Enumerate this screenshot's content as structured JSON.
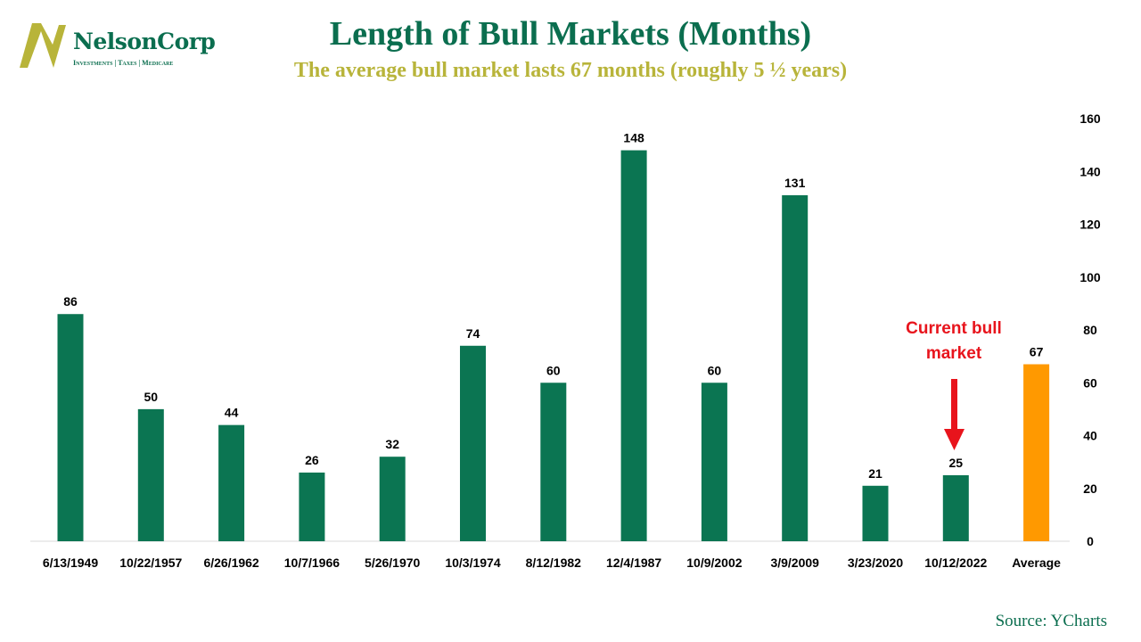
{
  "logo": {
    "name": "NelsonCorp",
    "tagline": "Investments | Taxes | Medicare"
  },
  "title": "Length of Bull Markets (Months)",
  "subtitle": "The average bull market lasts 67 months (roughly 5 ½ years)",
  "source": "Source: YCharts",
  "annotation": {
    "line1": "Current bull",
    "line2": "market",
    "color": "#e8141c"
  },
  "colors": {
    "bar": "#0b7552",
    "average": "#ff9900",
    "title": "#0b6e4f",
    "subtitle": "#b8b43a"
  },
  "chart_data": {
    "type": "bar",
    "categories": [
      "6/13/1949",
      "10/22/1957",
      "6/26/1962",
      "10/7/1966",
      "5/26/1970",
      "10/3/1974",
      "8/12/1982",
      "12/4/1987",
      "10/9/2002",
      "3/9/2009",
      "3/23/2020",
      "10/12/2022",
      "Average"
    ],
    "values": [
      86,
      50,
      44,
      26,
      32,
      74,
      60,
      148,
      60,
      131,
      21,
      25,
      67
    ],
    "ylim": [
      0,
      160
    ],
    "yticks": [
      0,
      20,
      40,
      60,
      80,
      100,
      120,
      140,
      160
    ],
    "y_axis_side": "right",
    "data_labels": true,
    "grid": false,
    "highlight": {
      "category": "Average",
      "color": "#ff9900"
    }
  }
}
